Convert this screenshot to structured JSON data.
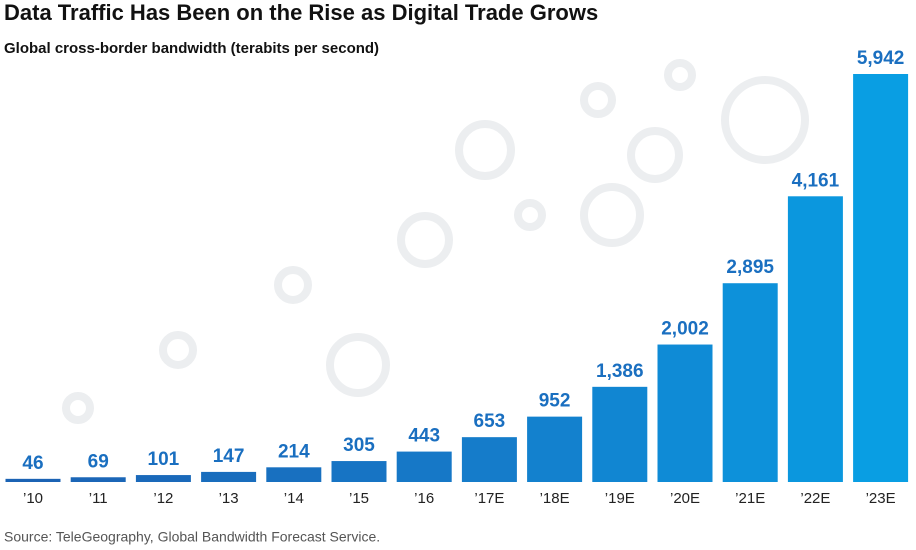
{
  "chart_data": {
    "type": "bar",
    "title": "Data Traffic Has Been on the Rise as Digital Trade Grows",
    "subtitle": "Global cross-border bandwidth (terabits per second)",
    "source": "Source: TeleGeography, Global Bandwidth Forecast Service.",
    "categories": [
      "’10",
      "’11",
      "’12",
      "’13",
      "’14",
      "’15",
      "’16",
      "’17E",
      "’18E",
      "’19E",
      "’20E",
      "’21E",
      "’22E",
      "’23E"
    ],
    "values": [
      46,
      69,
      101,
      147,
      214,
      305,
      443,
      653,
      952,
      1386,
      2002,
      2895,
      4161,
      5942
    ],
    "value_labels": [
      "46",
      "69",
      "101",
      "147",
      "214",
      "305",
      "443",
      "653",
      "952",
      "1,386",
      "2,002",
      "2,895",
      "4,161",
      "5,942"
    ],
    "colors": [
      "#1b63b4",
      "#1b66b7",
      "#1a69ba",
      "#196dbd",
      "#1870c0",
      "#1774c4",
      "#1678c7",
      "#157cca",
      "#1381ce",
      "#1186d2",
      "#0f8bd6",
      "#0d91da",
      "#0b97de",
      "#099ee3"
    ]
  }
}
